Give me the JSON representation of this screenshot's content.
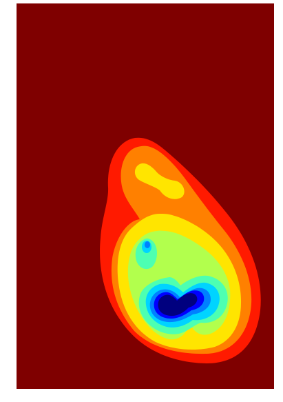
{
  "chart_data": {
    "type": "heatmap",
    "subtype": "filled-contour",
    "colormap": "jet",
    "title": "",
    "xlabel": "",
    "ylabel": "",
    "axes_visible": false,
    "grid": false,
    "legend": "none",
    "background_level": 1.0,
    "levels": [
      0.0,
      0.1,
      0.2,
      0.3,
      0.4,
      0.5,
      0.6,
      0.7,
      0.8,
      0.9,
      1.0
    ],
    "level_colors": {
      "level_0": "#00007f",
      "level_1": "#0000ff",
      "level_2": "#0080ff",
      "level_3": "#00d4ff",
      "level_4": "#4dffb2",
      "level_5": "#b2ff4d",
      "level_6": "#ffe500",
      "level_7": "#ff8000",
      "level_8": "#ff1a00",
      "level_9": "#7f0000"
    }
  }
}
